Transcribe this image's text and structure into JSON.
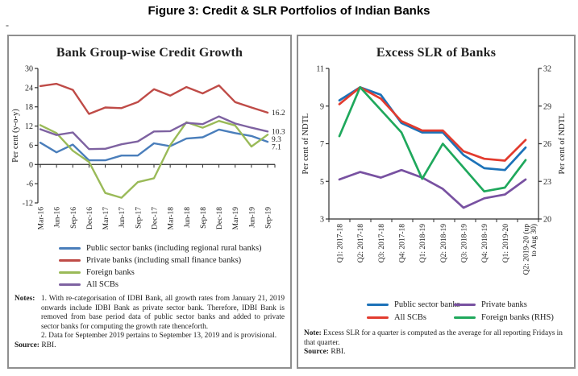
{
  "figure_title": "Figure 3: Credit & SLR Portfolios of Indian Banks",
  "stray_mark": "-",
  "left_panel": {
    "title": "Bank Group-wise Credit Growth",
    "notes_label": "Notes:",
    "note_1": "1. With re-categorisation of IDBI Bank, all growth rates from January 21, 2019 onwards include IDBI Bank as private sector bank. Therefore, IDBI Bank is removed from base period data of public sector banks and added to private sector banks for computing the growth rate thenceforth.",
    "note_2": "2. Data for September 2019 pertains to September 13, 2019 and is provisional.",
    "source_label": "Source:",
    "source_text": "RBI."
  },
  "right_panel": {
    "title": "Excess SLR of Banks",
    "note_label": "Note:",
    "note_text": "Excess SLR for a quarter is computed as the average for all reporting Fridays in that quarter.",
    "source_label": "Source:",
    "source_text": "RBI."
  },
  "chart_data": [
    {
      "type": "line",
      "title": "Bank Group-wise Credit Growth",
      "ylabel": "Per cent (y-o-y)",
      "ylim": [
        -12,
        30
      ],
      "yticks": [
        -12,
        -6,
        0,
        6,
        12,
        18,
        24,
        30
      ],
      "x_axis_at": 0,
      "grid": false,
      "legend_position": "bottom",
      "categories": [
        "Mar-16",
        "Jun-16",
        "Sep-16",
        "Dec-16",
        "Mar-17",
        "Jun-17",
        "Sep-17",
        "Dec-17",
        "Mar-18",
        "Jun-18",
        "Sep-18",
        "Dec-18",
        "Mar-19",
        "Jun-19",
        "Sep-19"
      ],
      "series": [
        {
          "name": "Public sector banks (including regional rural banks)",
          "color": "#4a7ebb",
          "values": [
            6.8,
            3.8,
            6.2,
            1.3,
            1.3,
            2.8,
            2.8,
            6.6,
            5.7,
            8.1,
            8.5,
            10.9,
            9.8,
            8.9,
            7.1
          ],
          "end_label": "7.1"
        },
        {
          "name": "Private banks (including small finance banks)",
          "color": "#bf4b47",
          "values": [
            24.5,
            25.2,
            23.3,
            15.8,
            17.8,
            17.6,
            19.5,
            23.5,
            21.5,
            24.2,
            22.2,
            24.7,
            19.5,
            17.8,
            16.2
          ],
          "end_label": "16.2"
        },
        {
          "name": "Foreign banks",
          "color": "#9aba58",
          "values": [
            12.3,
            9.8,
            4.3,
            0.8,
            -8.9,
            -10.4,
            -5.5,
            -4.3,
            6.0,
            13.2,
            11.5,
            13.6,
            12.2,
            5.6,
            9.3
          ],
          "end_label": "9.3"
        },
        {
          "name": "All SCBs",
          "color": "#7e62a1",
          "values": [
            11.0,
            9.2,
            10.0,
            4.8,
            4.9,
            6.3,
            7.2,
            10.3,
            10.4,
            13.0,
            12.6,
            15.0,
            12.8,
            11.5,
            10.3
          ],
          "end_label": "10.3"
        }
      ]
    },
    {
      "type": "line",
      "title": "Excess SLR of Banks",
      "ylabel_left": "Per cent of NDTL",
      "ylabel_right": "Per cent of NDTL",
      "y_left": {
        "lim": [
          3,
          11
        ],
        "ticks": [
          3,
          5,
          7,
          9,
          11
        ]
      },
      "y_right": {
        "lim": [
          20,
          32
        ],
        "ticks": [
          20,
          23,
          26,
          29,
          32
        ]
      },
      "x_axis_at": 3,
      "grid": false,
      "legend_position": "bottom",
      "categories": [
        "Q1: 2017-18",
        "Q2: 2017-18",
        "Q3: 2017-18",
        "Q4: 2017-18",
        "Q1: 2018-19",
        "Q2: 2018-19",
        "Q3: 2018-19",
        "Q4: 2018-19",
        "Q1: 2019-20",
        "Q2: 2019-20 (up to Aug 30)"
      ],
      "series": [
        {
          "name": "Public sector banks",
          "color": "#1c72b8",
          "axis": "left",
          "values": [
            9.3,
            10.0,
            9.6,
            8.1,
            7.6,
            7.6,
            6.4,
            5.7,
            5.6,
            6.8
          ]
        },
        {
          "name": "All SCBs",
          "color": "#e23b2e",
          "axis": "left",
          "values": [
            9.1,
            10.0,
            9.4,
            8.2,
            7.7,
            7.7,
            6.6,
            6.2,
            6.1,
            7.2
          ]
        },
        {
          "name": "Private banks",
          "color": "#7851a1",
          "axis": "left",
          "values": [
            5.1,
            5.5,
            5.2,
            5.6,
            5.2,
            4.6,
            3.6,
            4.1,
            4.3,
            5.1
          ]
        },
        {
          "name": "Foreign banks (RHS)",
          "color": "#1fa85c",
          "axis": "right",
          "values": [
            26.6,
            30.5,
            28.7,
            26.9,
            23.2,
            26.0,
            24.1,
            22.2,
            22.5,
            24.7
          ]
        }
      ]
    }
  ]
}
